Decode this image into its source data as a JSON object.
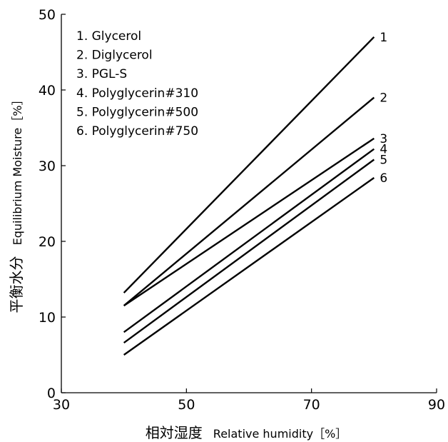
{
  "chart_data": {
    "type": "line",
    "xlabel_jp": "相対湿度",
    "xlabel": "Relative humidity［%］",
    "ylabel_jp": "平衡水分",
    "ylabel": "Equilibrium Moisture［%］",
    "xlim": [
      30,
      90
    ],
    "ylim": [
      0,
      50
    ],
    "xticks": [
      "30",
      "50",
      "70",
      "90"
    ],
    "yticks": [
      "0",
      "10",
      "20",
      "30",
      "40",
      "50"
    ],
    "legend": [
      "1. Glycerol",
      "2. Diglycerol",
      "3. PGL-S",
      "4. Polyglycerin#310",
      "5. Polyglycerin#500",
      "6. Polyglycerin#750"
    ],
    "series": [
      {
        "label": "1",
        "x": [
          40,
          80
        ],
        "y": [
          13.2,
          47.0
        ]
      },
      {
        "label": "2",
        "x": [
          40,
          80
        ],
        "y": [
          11.5,
          39.0
        ]
      },
      {
        "label": "3",
        "x": [
          40,
          80
        ],
        "y": [
          11.5,
          33.6
        ]
      },
      {
        "label": "4",
        "x": [
          40,
          80
        ],
        "y": [
          8.0,
          32.2
        ]
      },
      {
        "label": "5",
        "x": [
          40,
          80
        ],
        "y": [
          6.6,
          30.8
        ]
      },
      {
        "label": "6",
        "x": [
          40,
          80
        ],
        "y": [
          5.0,
          28.4
        ]
      }
    ]
  }
}
